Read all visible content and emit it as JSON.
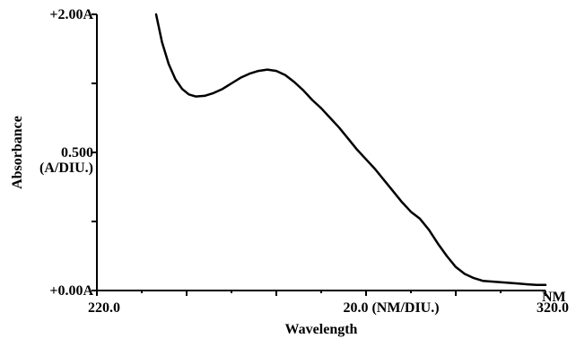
{
  "chart_data": {
    "type": "line",
    "title": "",
    "xlabel": "Wavelength",
    "ylabel": "Absorbance",
    "x_unit": "NM",
    "x_scale_label": "20.0 (NM/DIU.)",
    "y_scale_label": "(A/DIU.)",
    "xlim": [
      220.0,
      320.0
    ],
    "ylim": [
      0.0,
      2.0
    ],
    "x_tick_values": [
      220,
      230,
      240,
      250,
      260,
      270,
      280,
      290,
      300,
      310,
      320
    ],
    "x_tick_labels": [
      {
        "x": 220,
        "text": "220.0"
      },
      {
        "x": 320,
        "text": "320.0"
      }
    ],
    "y_tick_values": [
      0,
      0.5,
      1.0,
      1.5,
      2.0
    ],
    "y_tick_labels": [
      {
        "y": 2.0,
        "text": "+2.00A"
      },
      {
        "y": 1.0,
        "text": "0.500"
      },
      {
        "y": 0.0,
        "text": "+0.00A"
      }
    ],
    "grid": false,
    "series": [
      {
        "color": "#000000",
        "points": [
          [
            233.2,
            2.0
          ],
          [
            234.5,
            1.8
          ],
          [
            236,
            1.64
          ],
          [
            237.5,
            1.53
          ],
          [
            239,
            1.46
          ],
          [
            240.5,
            1.42
          ],
          [
            242,
            1.405
          ],
          [
            244,
            1.41
          ],
          [
            246,
            1.43
          ],
          [
            248,
            1.46
          ],
          [
            250,
            1.5
          ],
          [
            252,
            1.54
          ],
          [
            254,
            1.57
          ],
          [
            256,
            1.59
          ],
          [
            258,
            1.6
          ],
          [
            260,
            1.59
          ],
          [
            262,
            1.56
          ],
          [
            264,
            1.51
          ],
          [
            266,
            1.45
          ],
          [
            268,
            1.38
          ],
          [
            270,
            1.32
          ],
          [
            272,
            1.25
          ],
          [
            274,
            1.18
          ],
          [
            276,
            1.1
          ],
          [
            278,
            1.02
          ],
          [
            280,
            0.95
          ],
          [
            282,
            0.88
          ],
          [
            284,
            0.8
          ],
          [
            286,
            0.72
          ],
          [
            288,
            0.64
          ],
          [
            290,
            0.57
          ],
          [
            292,
            0.52
          ],
          [
            294,
            0.44
          ],
          [
            296,
            0.34
          ],
          [
            298,
            0.25
          ],
          [
            300,
            0.17
          ],
          [
            302,
            0.12
          ],
          [
            304,
            0.09
          ],
          [
            306,
            0.07
          ],
          [
            308,
            0.065
          ],
          [
            310,
            0.06
          ],
          [
            312,
            0.055
          ],
          [
            314,
            0.05
          ],
          [
            316,
            0.045
          ],
          [
            318,
            0.04
          ],
          [
            320,
            0.04
          ]
        ]
      }
    ]
  }
}
